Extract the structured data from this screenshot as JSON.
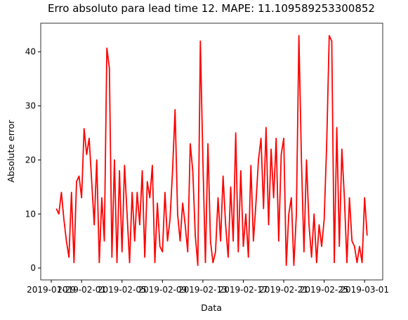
{
  "chart_data": {
    "type": "line",
    "title": "Erro absoluto para lead time 12. MAPE: 11.109589253300852",
    "x_label": "Data",
    "y_label": "Absolute error",
    "xlim": [
      "2019-01-27 23:00",
      "2019-03-02 19:00"
    ],
    "xticks": [
      "2019-01-29",
      "2019-02-01",
      "2019-02-05",
      "2019-02-09",
      "2019-02-13",
      "2019-02-17",
      "2019-02-21",
      "2019-02-25",
      "2019-03-01"
    ],
    "ylim": [
      -2.2,
      45.3
    ],
    "yticks": [
      0,
      10,
      20,
      30,
      40
    ],
    "grid": false,
    "series": [
      {
        "name": "Absolute error",
        "color": "#ff0000",
        "x": [
          "2019-01-29 12:00",
          "2019-01-29 18:00",
          "2019-01-30 00:00",
          "2019-01-30 06:00",
          "2019-01-30 12:00",
          "2019-01-30 18:00",
          "2019-01-31 00:00",
          "2019-01-31 06:00",
          "2019-01-31 12:00",
          "2019-01-31 18:00",
          "2019-02-01 00:00",
          "2019-02-01 06:00",
          "2019-02-01 12:00",
          "2019-02-01 18:00",
          "2019-02-02 00:00",
          "2019-02-02 06:00",
          "2019-02-02 12:00",
          "2019-02-02 18:00",
          "2019-02-03 00:00",
          "2019-02-03 06:00",
          "2019-02-03 12:00",
          "2019-02-03 18:00",
          "2019-02-04 00:00",
          "2019-02-04 06:00",
          "2019-02-04 12:00",
          "2019-02-04 18:00",
          "2019-02-05 00:00",
          "2019-02-05 06:00",
          "2019-02-05 12:00",
          "2019-02-05 18:00",
          "2019-02-06 00:00",
          "2019-02-06 06:00",
          "2019-02-06 12:00",
          "2019-02-06 18:00",
          "2019-02-07 00:00",
          "2019-02-07 06:00",
          "2019-02-07 12:00",
          "2019-02-07 18:00",
          "2019-02-08 00:00",
          "2019-02-08 06:00",
          "2019-02-08 12:00",
          "2019-02-08 18:00",
          "2019-02-09 00:00",
          "2019-02-09 06:00",
          "2019-02-09 12:00",
          "2019-02-09 18:00",
          "2019-02-10 00:00",
          "2019-02-10 06:00",
          "2019-02-10 12:00",
          "2019-02-10 18:00",
          "2019-02-11 00:00",
          "2019-02-11 06:00",
          "2019-02-11 12:00",
          "2019-02-11 18:00",
          "2019-02-12 00:00",
          "2019-02-12 06:00",
          "2019-02-12 12:00",
          "2019-02-12 18:00",
          "2019-02-13 00:00",
          "2019-02-13 06:00",
          "2019-02-13 12:00",
          "2019-02-13 18:00",
          "2019-02-14 00:00",
          "2019-02-14 06:00",
          "2019-02-14 12:00",
          "2019-02-14 18:00",
          "2019-02-15 00:00",
          "2019-02-15 06:00",
          "2019-02-15 12:00",
          "2019-02-15 18:00",
          "2019-02-16 00:00",
          "2019-02-16 06:00",
          "2019-02-16 12:00",
          "2019-02-16 18:00",
          "2019-02-17 00:00",
          "2019-02-17 06:00",
          "2019-02-17 12:00",
          "2019-02-17 18:00",
          "2019-02-18 00:00",
          "2019-02-18 06:00",
          "2019-02-18 12:00",
          "2019-02-18 18:00",
          "2019-02-19 00:00",
          "2019-02-19 06:00",
          "2019-02-19 12:00",
          "2019-02-19 18:00",
          "2019-02-20 00:00",
          "2019-02-20 06:00",
          "2019-02-20 12:00",
          "2019-02-20 18:00",
          "2019-02-21 00:00",
          "2019-02-21 06:00",
          "2019-02-21 12:00",
          "2019-02-21 18:00",
          "2019-02-22 00:00",
          "2019-02-22 06:00",
          "2019-02-22 12:00",
          "2019-02-22 18:00",
          "2019-02-23 00:00",
          "2019-02-23 06:00",
          "2019-02-23 12:00",
          "2019-02-23 18:00",
          "2019-02-24 00:00",
          "2019-02-24 06:00",
          "2019-02-24 12:00",
          "2019-02-24 18:00",
          "2019-02-25 00:00",
          "2019-02-25 06:00",
          "2019-02-25 12:00",
          "2019-02-25 18:00",
          "2019-02-26 00:00",
          "2019-02-26 06:00",
          "2019-02-26 12:00",
          "2019-02-26 18:00",
          "2019-02-27 00:00",
          "2019-02-27 06:00",
          "2019-02-27 12:00",
          "2019-02-27 18:00",
          "2019-02-28 00:00",
          "2019-02-28 06:00",
          "2019-02-28 12:00",
          "2019-02-28 18:00",
          "2019-03-01 00:00",
          "2019-03-01 06:00"
        ],
        "values": [
          11,
          10,
          14,
          9,
          5,
          2,
          14,
          1,
          16,
          17,
          13,
          25.8,
          21,
          24,
          16,
          8,
          20,
          1,
          13,
          5,
          40.7,
          37,
          2,
          20,
          1,
          18,
          3,
          19,
          10,
          1,
          14,
          5,
          14,
          8,
          18,
          2,
          16,
          13,
          19,
          1,
          12,
          4,
          3,
          14,
          5,
          9,
          18,
          29.3,
          10,
          5,
          12,
          8,
          3,
          23,
          18,
          6,
          0.5,
          42,
          20,
          1,
          23,
          5,
          1,
          3,
          13,
          5,
          17,
          8,
          2,
          15,
          5,
          25,
          3,
          18,
          4,
          10,
          2,
          19,
          5,
          12,
          20,
          24,
          11,
          26,
          8,
          22,
          13,
          24,
          5,
          21,
          24,
          0.5,
          10,
          13,
          0.5,
          10,
          43,
          20,
          3,
          20,
          8,
          2,
          10,
          1,
          8,
          4,
          9,
          23,
          43,
          42,
          1,
          26,
          4,
          22,
          13,
          1,
          13,
          5,
          4,
          1,
          4,
          1,
          13,
          6
        ]
      }
    ]
  }
}
